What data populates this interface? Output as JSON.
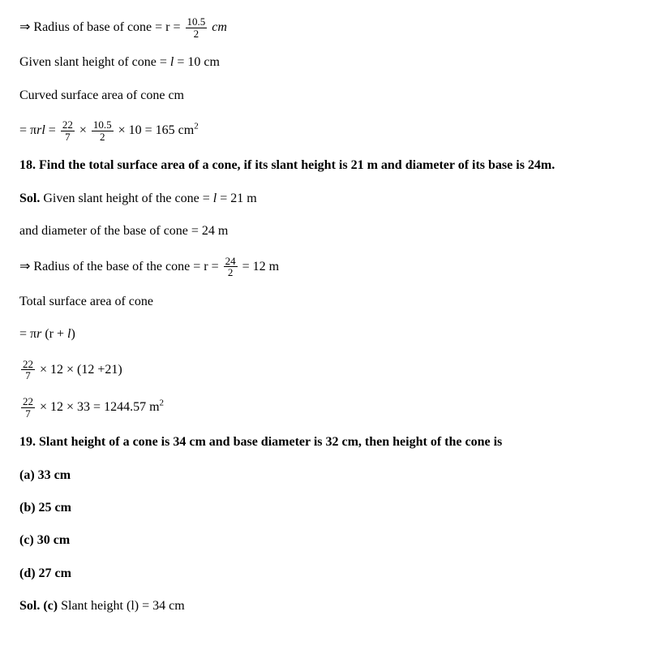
{
  "lines": {
    "l1_pre": "⇒   Radius of base of cone = r = ",
    "l1_num": "10.5",
    "l1_den": "2",
    "l1_post": " ",
    "l1_unit": "cm",
    "l2": "Given slant height of cone = ",
    "l2_var": "l",
    "l2_post": " = 10 cm",
    "l3": "Curved surface area of cone cm",
    "l4_pre": "= π",
    "l4_rl": "rl",
    "l4_eq": " = ",
    "l4_f1n": "22",
    "l4_f1d": "7",
    "l4_mid1": "  ×  ",
    "l4_f2n": "10.5",
    "l4_f2d": "2",
    "l4_mid2": "  × 10 = 165 cm",
    "l4_sup": "2",
    "q18": "18. Find the total surface area of a cone, if its slant height is 21 m and diameter of its base is 24m.",
    "s18a_pre": "Sol.",
    "s18a_txt": " Given slant height of the cone = ",
    "s18a_var": "l",
    "s18a_post": " = 21 m",
    "s18b": "and diameter of the base of cone = 24 m",
    "s18c_pre": "⇒ Radius of the base of the cone = r = ",
    "s18c_num": "24",
    "s18c_den": "2",
    "s18c_post": " = 12 m",
    "s18d": "Total surface area of cone",
    "s18e_pre": "= π",
    "s18e_r": "r",
    "s18e_mid": " (r + ",
    "s18e_l": "l",
    "s18e_post": ")",
    "s18f_num": "22",
    "s18f_den": "7",
    "s18f_post": "  × 12 ×  (12 +21)",
    "s18g_num": "22",
    "s18g_den": "7",
    "s18g_post": "  × 12 × 33 = 1244.57 m",
    "s18g_sup": "2",
    "q19": "19. Slant height of a cone is 34 cm and base diameter is 32 cm, then height of the cone is",
    "q19a": "(a) 33 cm",
    "q19b": "(b) 25 cm",
    "q19c": "(c) 30 cm",
    "q19d": "(d) 27 cm",
    "s19_pre": "Sol.  (c)",
    "s19_txt": " Slant height (l) = 34 cm"
  }
}
